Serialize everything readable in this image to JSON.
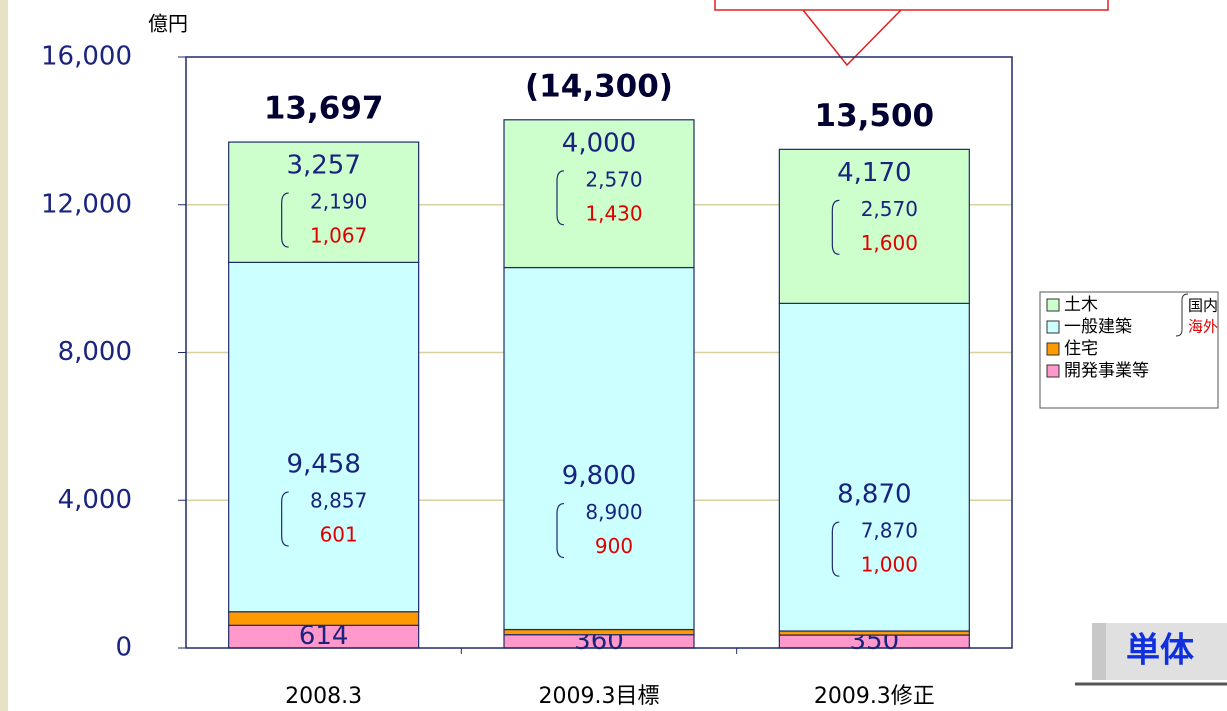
{
  "chart_data": {
    "type": "stacked_bar",
    "unit": "億円",
    "categories": [
      "2008.3",
      "2009.3目標",
      "2009.3修正"
    ],
    "ylim": [
      0,
      16000
    ],
    "yticks": [
      0,
      {
        "value": 4000,
        "label": "4,000"
      },
      {
        "value": 8000,
        "label": "8,000"
      },
      {
        "value": 12000,
        "label": "12,000"
      },
      {
        "value": 16000,
        "label": "16,000"
      }
    ],
    "grid": true,
    "series": [
      {
        "name": "開発事業等",
        "color": "#ff99cc",
        "values": [
          614,
          360,
          350
        ]
      },
      {
        "name": "住宅",
        "color": "#ff9900",
        "values": [
          368,
          140,
          110
        ]
      },
      {
        "name": "一般建築",
        "color": "#ccffff",
        "values": [
          9458,
          9800,
          8870
        ],
        "value_labels": [
          "9,458",
          "9,800",
          "8,870"
        ],
        "domestic": [
          8857,
          8900,
          7870
        ],
        "domestic_labels": [
          "8,857",
          "8,900",
          "7,870"
        ],
        "overseas": [
          601,
          900,
          1000
        ],
        "overseas_labels": [
          "601",
          "900",
          "1,000"
        ]
      },
      {
        "name": "土木",
        "color": "#ccffcc",
        "values": [
          3257,
          4000,
          4170
        ],
        "value_labels": [
          "3,257",
          "4,000",
          "4,170"
        ],
        "domestic": [
          2190,
          2570,
          2570
        ],
        "domestic_labels": [
          "2,190",
          "2,570",
          "2,570"
        ],
        "overseas": [
          1067,
          1430,
          1600
        ],
        "overseas_labels": [
          "1,067",
          "1,430",
          "1,600"
        ]
      }
    ],
    "totals": {
      "values": [
        13697,
        14300,
        13500
      ],
      "value_labels": [
        "13,697",
        "(14,300)",
        "13,500"
      ]
    },
    "breakdown_names": [
      "国内",
      "海外"
    ],
    "badge": "単体"
  }
}
